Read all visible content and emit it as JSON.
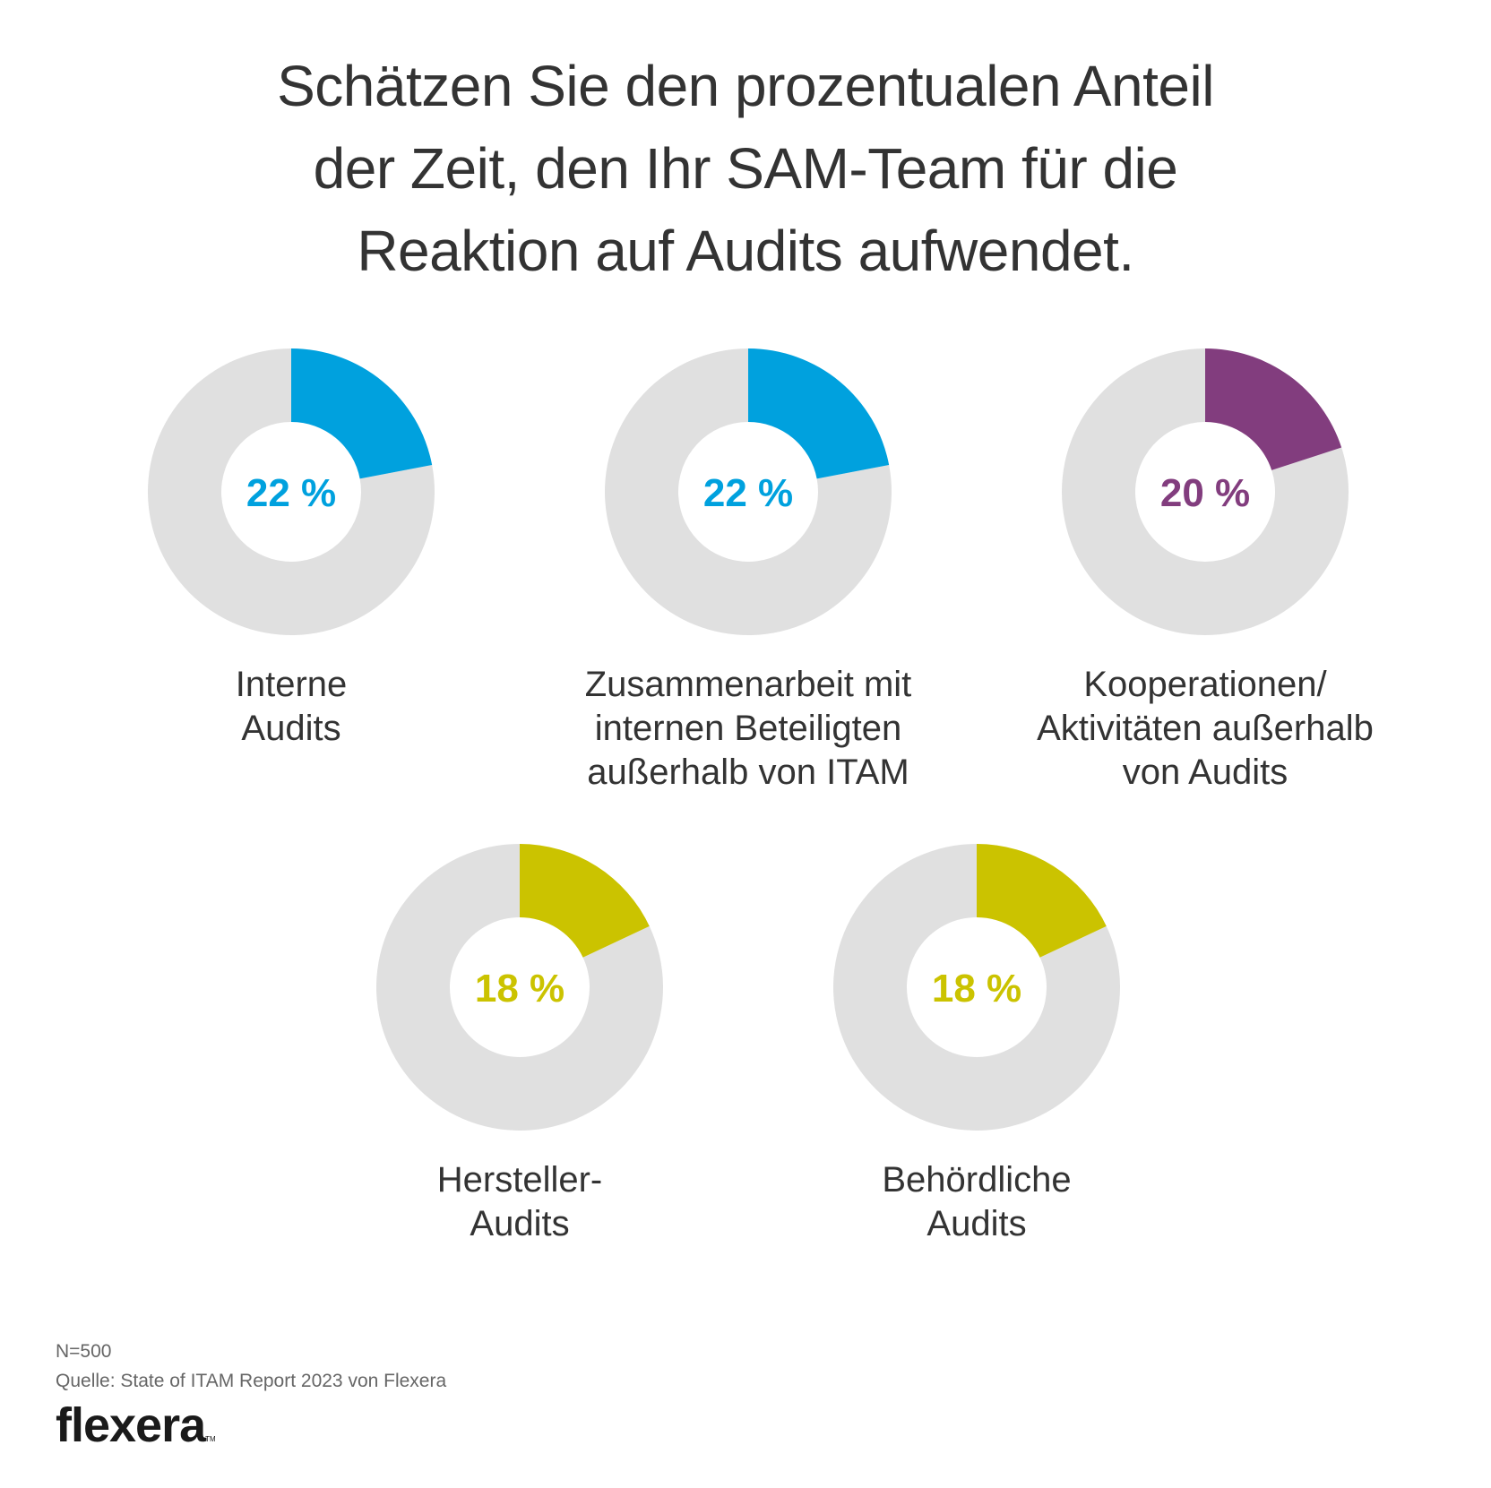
{
  "title_lines": [
    "Schätzen Sie den prozentualen Anteil",
    "der Zeit, den Ihr SAM-Team für die",
    "Reaktion auf Audits aufwendet."
  ],
  "chart_data": {
    "type": "pie",
    "variant": "donut",
    "title": "Schätzen Sie den prozentualen Anteil der Zeit, den Ihr SAM-Team für die Reaktion auf Audits aufwendet.",
    "unit": "%",
    "total": 100,
    "charts": [
      {
        "label_lines": [
          "Interne",
          "Audits"
        ],
        "label": "Interne Audits",
        "value": 22,
        "value_label": "22 %",
        "color": "#00a1de",
        "remainder_color": "#e0e0e0"
      },
      {
        "label_lines": [
          "Zusammenarbeit mit",
          "internen Beteiligten",
          "außerhalb von ITAM"
        ],
        "label": "Zusammenarbeit mit internen Beteiligten außerhalb von ITAM",
        "value": 22,
        "value_label": "22 %",
        "color": "#00a1de",
        "remainder_color": "#e0e0e0"
      },
      {
        "label_lines": [
          "Kooperationen/",
          "Aktivitäten außerhalb",
          "von Audits"
        ],
        "label": "Kooperationen/Aktivitäten außerhalb von Audits",
        "value": 20,
        "value_label": "20 %",
        "color": "#823d7e",
        "remainder_color": "#e0e0e0"
      },
      {
        "label_lines": [
          "Hersteller-",
          "Audits"
        ],
        "label": "Hersteller-Audits",
        "value": 18,
        "value_label": "18 %",
        "color": "#cbc300",
        "remainder_color": "#e0e0e0"
      },
      {
        "label_lines": [
          "Behördliche",
          "Audits"
        ],
        "label": "Behördliche Audits",
        "value": 18,
        "value_label": "18 %",
        "color": "#cbc300",
        "remainder_color": "#e0e0e0"
      }
    ]
  },
  "footer": {
    "sample": "N=500",
    "source": "Quelle: State of ITAM Report 2023 von Flexera",
    "logo": "flexera",
    "logo_tm": "TM"
  }
}
